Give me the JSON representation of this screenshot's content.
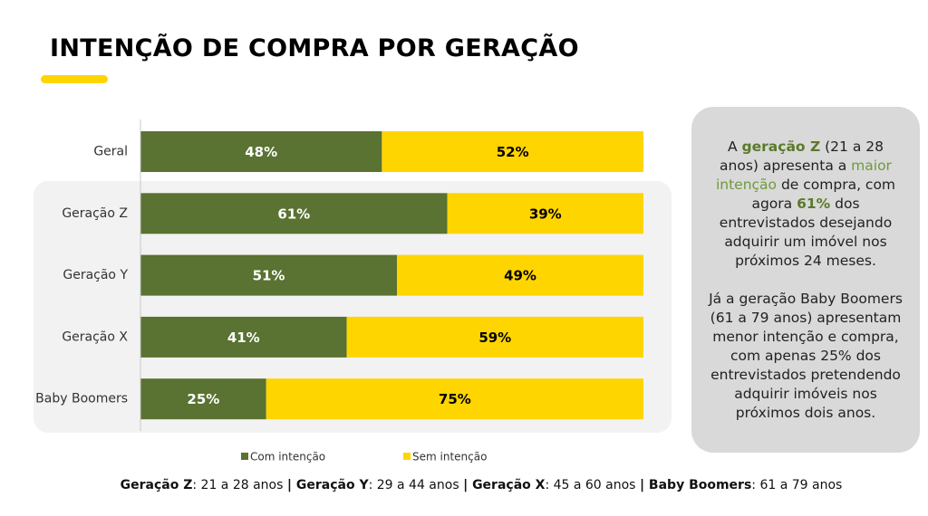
{
  "header": {
    "title": "INTENÇÃO DE COMPRA POR GERAÇÃO"
  },
  "chart_data": {
    "type": "stacked-bar",
    "categories": [
      "Geral",
      "Geração Z",
      "Geração Y",
      "Geração X",
      "Baby Boomers"
    ],
    "series": [
      {
        "name": "Com intenção",
        "color": "#5a7232",
        "label_color": "#ffffff",
        "values": [
          48,
          61,
          51,
          41,
          25
        ],
        "value_labels": [
          "48%",
          "61%",
          "51%",
          "41%",
          "25%"
        ]
      },
      {
        "name": "Sem intenção",
        "color": "#ffd500",
        "label_color": "#000000",
        "values": [
          52,
          39,
          49,
          59,
          75
        ],
        "value_labels": [
          "52%",
          "39%",
          "49%",
          "59%",
          "75%"
        ]
      }
    ]
  },
  "sidebar": {
    "paragraphs": [
      [
        {
          "text": "A ",
          "style": "plain"
        },
        {
          "text": "geração Z",
          "style": "strong"
        },
        {
          "text": " (21 a 28 anos) apresenta a ",
          "style": "plain"
        },
        {
          "text": "maior intenção",
          "style": "accent"
        },
        {
          "text": " de compra, com agora ",
          "style": "plain"
        },
        {
          "text": "61%",
          "style": "strong"
        },
        {
          "text": " dos entrevistados desejando adquirir um imóvel nos próximos 24 meses.",
          "style": "plain"
        }
      ],
      [
        {
          "text": "Já a geração Baby Boomers (61 a 79 anos) apresentam menor intenção e compra, com apenas 25% dos entrevistados pretendendo adquirir imóveis nos próximos dois anos.",
          "style": "plain"
        }
      ]
    ]
  },
  "footer": {
    "segments": [
      {
        "text": "Geração Z",
        "bold": true
      },
      {
        "text": ": 21 a 28 anos ",
        "bold": false
      },
      {
        "text": "| Geração Y",
        "bold": true
      },
      {
        "text": ": 29 a 44 anos ",
        "bold": false
      },
      {
        "text": "| Geração X",
        "bold": true
      },
      {
        "text": ": 45 a 60 anos ",
        "bold": false
      },
      {
        "text": "| Baby Boomers",
        "bold": true
      },
      {
        "text": ": 61 a 79 anos",
        "bold": false
      }
    ]
  }
}
